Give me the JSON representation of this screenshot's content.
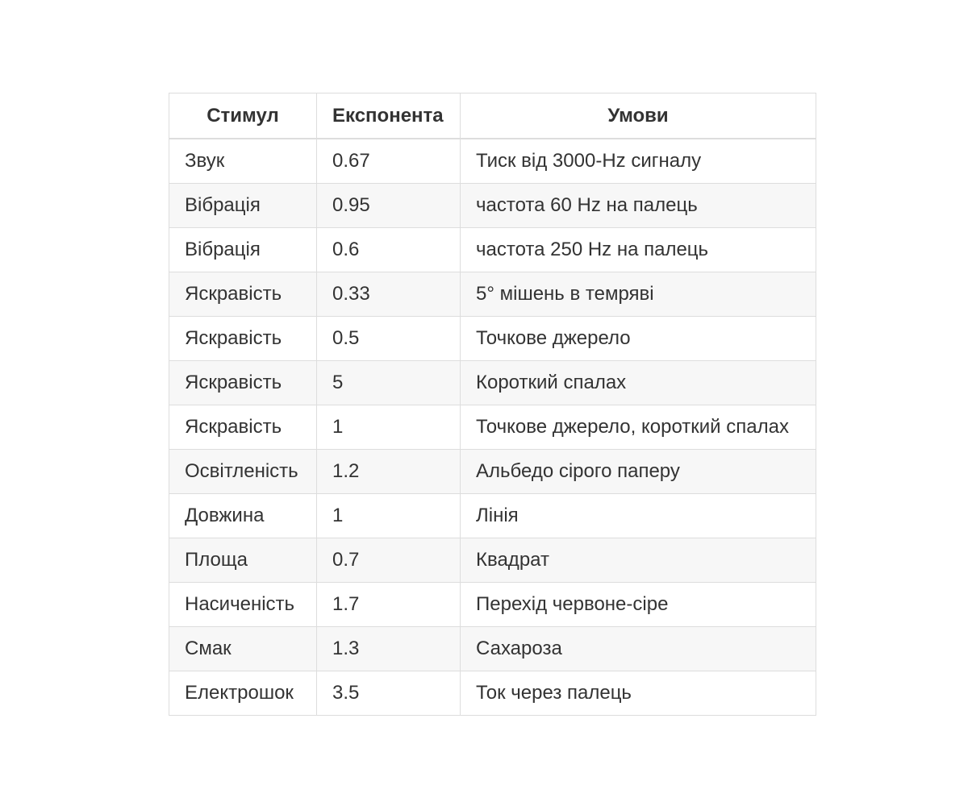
{
  "table": {
    "headers": [
      "Стимул",
      "Експонента",
      "Умови"
    ],
    "rows": [
      [
        "Звук",
        "0.67",
        "Тиск від 3000-Hz сигналу"
      ],
      [
        "Вібрація",
        "0.95",
        "частота 60 Hz на палець"
      ],
      [
        "Вібрація",
        "0.6",
        "частота 250 Hz на палець"
      ],
      [
        "Яскравість",
        "0.33",
        "5° мішень в темряві"
      ],
      [
        "Яскравість",
        "0.5",
        "Точкове джерело"
      ],
      [
        "Яскравість",
        "5",
        "Короткий спалах"
      ],
      [
        "Яскравість",
        "1",
        "Точкове джерело, короткий спалах"
      ],
      [
        "Освітленість",
        "1.2",
        "Альбедо сірого паперу"
      ],
      [
        "Довжина",
        "1",
        "Лінія"
      ],
      [
        "Площа",
        "0.7",
        "Квадрат"
      ],
      [
        "Насиченість",
        "1.7",
        "Перехід червоне-сіре"
      ],
      [
        "Смак",
        "1.3",
        "Сахароза"
      ],
      [
        "Електрошок",
        "3.5",
        "Ток через палець"
      ]
    ]
  }
}
